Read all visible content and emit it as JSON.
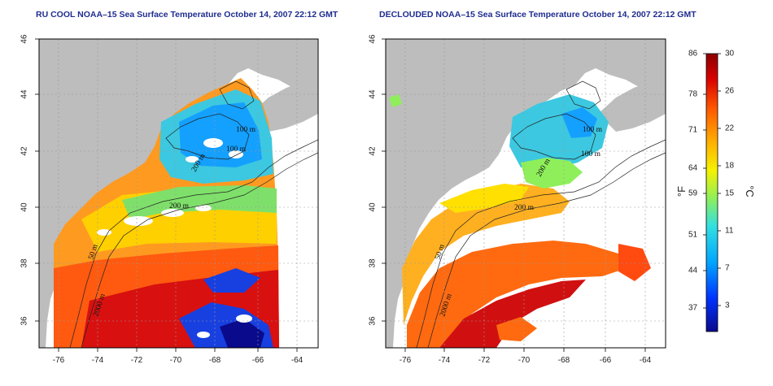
{
  "panels": [
    {
      "title": "RU COOL NOAA–15 Sea Surface Temperature October 14, 2007 22:12 GMT",
      "xticks": [
        "-76",
        "-74",
        "-72",
        "-70",
        "-68",
        "-66",
        "-64"
      ],
      "yticks": [
        "36",
        "38",
        "40",
        "42",
        "44",
        "46"
      ],
      "contour_labels": [
        "100 m",
        "100 m",
        "200 m",
        "200 m",
        "50 m",
        "2000 m"
      ]
    },
    {
      "title": "DECLOUDED NOAA–15 Sea Surface Temperature October 14, 2007 22:12 GMT",
      "xticks": [
        "-76",
        "-74",
        "-72",
        "-70",
        "-68",
        "-66",
        "-64"
      ],
      "yticks": [
        "36",
        "38",
        "40",
        "42",
        "44",
        "46"
      ],
      "contour_labels": [
        "100 m",
        "100 m",
        "200 m",
        "200 m",
        "50 m",
        "2000 m"
      ]
    }
  ],
  "colorbar": {
    "fahrenheit_label": "°F",
    "celsius_label": "°C",
    "fahrenheit_ticks": [
      "86",
      "78",
      "71",
      "64",
      "59",
      "51",
      "44",
      "37"
    ],
    "celsius_ticks": [
      "30",
      "26",
      "22",
      "18",
      "15",
      "11",
      "7",
      "3"
    ],
    "celsius_range": [
      0,
      30
    ],
    "colors": [
      "#0a0a8c",
      "#0033ff",
      "#00a6ff",
      "#33e0e0",
      "#8fef5a",
      "#f5f200",
      "#ffb000",
      "#ff5a00",
      "#d80000",
      "#8c0000"
    ]
  },
  "colors": {
    "land": "#bdbdbd",
    "ocean_no_data": "#ffffff",
    "title_text": "#1f2d8f"
  }
}
